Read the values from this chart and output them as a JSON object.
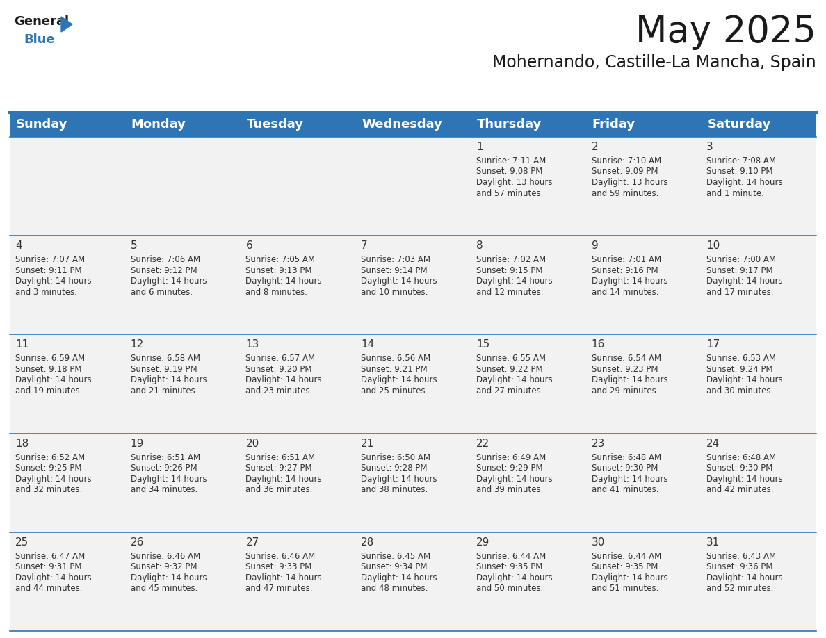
{
  "title": "May 2025",
  "subtitle": "Mohernando, Castille-La Mancha, Spain",
  "header_color": "#2E75B6",
  "header_text_color": "#FFFFFF",
  "cell_bg": "#F2F2F2",
  "day_names": [
    "Sunday",
    "Monday",
    "Tuesday",
    "Wednesday",
    "Thursday",
    "Friday",
    "Saturday"
  ],
  "title_fontsize": 38,
  "subtitle_fontsize": 17,
  "header_fontsize": 13,
  "day_num_fontsize": 11,
  "info_fontsize": 8.5,
  "logo_color1": "#1a1a1a",
  "logo_color2": "#2E75B6",
  "logo_triangle_color": "#2E75B6",
  "grid_line_color": "#2E75B6",
  "text_color": "#333333",
  "days": [
    {
      "day": 1,
      "col": 4,
      "row": 0,
      "sunrise": "7:11 AM",
      "sunset": "9:08 PM",
      "daylight_line1": "Daylight: 13 hours",
      "daylight_line2": "and 57 minutes."
    },
    {
      "day": 2,
      "col": 5,
      "row": 0,
      "sunrise": "7:10 AM",
      "sunset": "9:09 PM",
      "daylight_line1": "Daylight: 13 hours",
      "daylight_line2": "and 59 minutes."
    },
    {
      "day": 3,
      "col": 6,
      "row": 0,
      "sunrise": "7:08 AM",
      "sunset": "9:10 PM",
      "daylight_line1": "Daylight: 14 hours",
      "daylight_line2": "and 1 minute."
    },
    {
      "day": 4,
      "col": 0,
      "row": 1,
      "sunrise": "7:07 AM",
      "sunset": "9:11 PM",
      "daylight_line1": "Daylight: 14 hours",
      "daylight_line2": "and 3 minutes."
    },
    {
      "day": 5,
      "col": 1,
      "row": 1,
      "sunrise": "7:06 AM",
      "sunset": "9:12 PM",
      "daylight_line1": "Daylight: 14 hours",
      "daylight_line2": "and 6 minutes."
    },
    {
      "day": 6,
      "col": 2,
      "row": 1,
      "sunrise": "7:05 AM",
      "sunset": "9:13 PM",
      "daylight_line1": "Daylight: 14 hours",
      "daylight_line2": "and 8 minutes."
    },
    {
      "day": 7,
      "col": 3,
      "row": 1,
      "sunrise": "7:03 AM",
      "sunset": "9:14 PM",
      "daylight_line1": "Daylight: 14 hours",
      "daylight_line2": "and 10 minutes."
    },
    {
      "day": 8,
      "col": 4,
      "row": 1,
      "sunrise": "7:02 AM",
      "sunset": "9:15 PM",
      "daylight_line1": "Daylight: 14 hours",
      "daylight_line2": "and 12 minutes."
    },
    {
      "day": 9,
      "col": 5,
      "row": 1,
      "sunrise": "7:01 AM",
      "sunset": "9:16 PM",
      "daylight_line1": "Daylight: 14 hours",
      "daylight_line2": "and 14 minutes."
    },
    {
      "day": 10,
      "col": 6,
      "row": 1,
      "sunrise": "7:00 AM",
      "sunset": "9:17 PM",
      "daylight_line1": "Daylight: 14 hours",
      "daylight_line2": "and 17 minutes."
    },
    {
      "day": 11,
      "col": 0,
      "row": 2,
      "sunrise": "6:59 AM",
      "sunset": "9:18 PM",
      "daylight_line1": "Daylight: 14 hours",
      "daylight_line2": "and 19 minutes."
    },
    {
      "day": 12,
      "col": 1,
      "row": 2,
      "sunrise": "6:58 AM",
      "sunset": "9:19 PM",
      "daylight_line1": "Daylight: 14 hours",
      "daylight_line2": "and 21 minutes."
    },
    {
      "day": 13,
      "col": 2,
      "row": 2,
      "sunrise": "6:57 AM",
      "sunset": "9:20 PM",
      "daylight_line1": "Daylight: 14 hours",
      "daylight_line2": "and 23 minutes."
    },
    {
      "day": 14,
      "col": 3,
      "row": 2,
      "sunrise": "6:56 AM",
      "sunset": "9:21 PM",
      "daylight_line1": "Daylight: 14 hours",
      "daylight_line2": "and 25 minutes."
    },
    {
      "day": 15,
      "col": 4,
      "row": 2,
      "sunrise": "6:55 AM",
      "sunset": "9:22 PM",
      "daylight_line1": "Daylight: 14 hours",
      "daylight_line2": "and 27 minutes."
    },
    {
      "day": 16,
      "col": 5,
      "row": 2,
      "sunrise": "6:54 AM",
      "sunset": "9:23 PM",
      "daylight_line1": "Daylight: 14 hours",
      "daylight_line2": "and 29 minutes."
    },
    {
      "day": 17,
      "col": 6,
      "row": 2,
      "sunrise": "6:53 AM",
      "sunset": "9:24 PM",
      "daylight_line1": "Daylight: 14 hours",
      "daylight_line2": "and 30 minutes."
    },
    {
      "day": 18,
      "col": 0,
      "row": 3,
      "sunrise": "6:52 AM",
      "sunset": "9:25 PM",
      "daylight_line1": "Daylight: 14 hours",
      "daylight_line2": "and 32 minutes."
    },
    {
      "day": 19,
      "col": 1,
      "row": 3,
      "sunrise": "6:51 AM",
      "sunset": "9:26 PM",
      "daylight_line1": "Daylight: 14 hours",
      "daylight_line2": "and 34 minutes."
    },
    {
      "day": 20,
      "col": 2,
      "row": 3,
      "sunrise": "6:51 AM",
      "sunset": "9:27 PM",
      "daylight_line1": "Daylight: 14 hours",
      "daylight_line2": "and 36 minutes."
    },
    {
      "day": 21,
      "col": 3,
      "row": 3,
      "sunrise": "6:50 AM",
      "sunset": "9:28 PM",
      "daylight_line1": "Daylight: 14 hours",
      "daylight_line2": "and 38 minutes."
    },
    {
      "day": 22,
      "col": 4,
      "row": 3,
      "sunrise": "6:49 AM",
      "sunset": "9:29 PM",
      "daylight_line1": "Daylight: 14 hours",
      "daylight_line2": "and 39 minutes."
    },
    {
      "day": 23,
      "col": 5,
      "row": 3,
      "sunrise": "6:48 AM",
      "sunset": "9:30 PM",
      "daylight_line1": "Daylight: 14 hours",
      "daylight_line2": "and 41 minutes."
    },
    {
      "day": 24,
      "col": 6,
      "row": 3,
      "sunrise": "6:48 AM",
      "sunset": "9:30 PM",
      "daylight_line1": "Daylight: 14 hours",
      "daylight_line2": "and 42 minutes."
    },
    {
      "day": 25,
      "col": 0,
      "row": 4,
      "sunrise": "6:47 AM",
      "sunset": "9:31 PM",
      "daylight_line1": "Daylight: 14 hours",
      "daylight_line2": "and 44 minutes."
    },
    {
      "day": 26,
      "col": 1,
      "row": 4,
      "sunrise": "6:46 AM",
      "sunset": "9:32 PM",
      "daylight_line1": "Daylight: 14 hours",
      "daylight_line2": "and 45 minutes."
    },
    {
      "day": 27,
      "col": 2,
      "row": 4,
      "sunrise": "6:46 AM",
      "sunset": "9:33 PM",
      "daylight_line1": "Daylight: 14 hours",
      "daylight_line2": "and 47 minutes."
    },
    {
      "day": 28,
      "col": 3,
      "row": 4,
      "sunrise": "6:45 AM",
      "sunset": "9:34 PM",
      "daylight_line1": "Daylight: 14 hours",
      "daylight_line2": "and 48 minutes."
    },
    {
      "day": 29,
      "col": 4,
      "row": 4,
      "sunrise": "6:44 AM",
      "sunset": "9:35 PM",
      "daylight_line1": "Daylight: 14 hours",
      "daylight_line2": "and 50 minutes."
    },
    {
      "day": 30,
      "col": 5,
      "row": 4,
      "sunrise": "6:44 AM",
      "sunset": "9:35 PM",
      "daylight_line1": "Daylight: 14 hours",
      "daylight_line2": "and 51 minutes."
    },
    {
      "day": 31,
      "col": 6,
      "row": 4,
      "sunrise": "6:43 AM",
      "sunset": "9:36 PM",
      "daylight_line1": "Daylight: 14 hours",
      "daylight_line2": "and 52 minutes."
    }
  ]
}
